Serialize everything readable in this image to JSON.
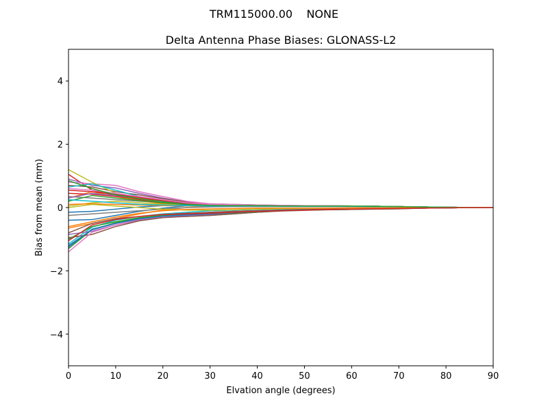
{
  "figure": {
    "suptitle": "TRM115000.00    NONE"
  },
  "chart_data": {
    "type": "line",
    "title": "Delta Antenna Phase Biases: GLONASS-L2",
    "xlabel": "Elvation angle (degrees)",
    "ylabel": "Bias from mean (mm)",
    "xlim": [
      0,
      90
    ],
    "ylim": [
      -5,
      5
    ],
    "x_ticks": [
      0,
      10,
      20,
      30,
      40,
      50,
      60,
      70,
      80,
      90
    ],
    "y_ticks": [
      -4,
      -2,
      0,
      2,
      4
    ],
    "y_tick_labels": [
      "−4",
      "−2",
      "0",
      "2",
      "4"
    ],
    "grid": false,
    "legend": "none",
    "x": [
      0,
      5,
      10,
      15,
      20,
      25,
      30,
      35,
      40,
      45,
      50,
      55,
      60,
      65,
      70,
      75,
      80,
      85,
      90
    ],
    "series": [
      {
        "color": "#1f77b4",
        "values": [
          -0.4,
          -0.38,
          -0.25,
          -0.12,
          -0.02,
          0.05,
          0.08,
          0.08,
          0.07,
          0.06,
          0.05,
          0.05,
          0.04,
          0.04,
          0.03,
          0.02,
          0.01,
          0.0,
          0.0
        ]
      },
      {
        "color": "#ff7f0e",
        "values": [
          -0.65,
          -0.5,
          -0.35,
          -0.2,
          -0.08,
          0.0,
          0.05,
          0.07,
          0.07,
          0.06,
          0.06,
          0.05,
          0.05,
          0.04,
          0.03,
          0.02,
          0.01,
          0.0,
          0.0
        ]
      },
      {
        "color": "#2ca02c",
        "values": [
          -1.3,
          -0.7,
          -0.48,
          -0.35,
          -0.28,
          -0.28,
          -0.25,
          -0.2,
          -0.15,
          -0.1,
          -0.08,
          -0.07,
          -0.06,
          -0.05,
          -0.04,
          -0.02,
          -0.01,
          0.0,
          0.0
        ]
      },
      {
        "color": "#d62728",
        "values": [
          1.05,
          0.55,
          0.38,
          0.25,
          0.15,
          0.08,
          0.05,
          0.05,
          0.05,
          0.05,
          0.05,
          0.05,
          0.05,
          0.04,
          0.03,
          0.02,
          0.01,
          0.0,
          0.0
        ]
      },
      {
        "color": "#9467bd",
        "values": [
          0.9,
          0.7,
          0.62,
          0.45,
          0.3,
          0.18,
          0.1,
          0.08,
          0.07,
          0.06,
          0.06,
          0.05,
          0.05,
          0.04,
          0.03,
          0.02,
          0.01,
          0.0,
          0.0
        ]
      },
      {
        "color": "#8c564b",
        "values": [
          0.7,
          0.65,
          0.5,
          0.4,
          0.28,
          0.18,
          0.12,
          0.1,
          0.08,
          0.07,
          0.06,
          0.06,
          0.05,
          0.04,
          0.03,
          0.02,
          0.01,
          0.0,
          0.0
        ]
      },
      {
        "color": "#e377c2",
        "values": [
          0.8,
          0.75,
          0.7,
          0.5,
          0.35,
          0.2,
          0.12,
          0.1,
          0.08,
          0.07,
          0.06,
          0.06,
          0.05,
          0.04,
          0.03,
          0.02,
          0.01,
          0.0,
          0.0
        ]
      },
      {
        "color": "#7f7f7f",
        "values": [
          0.35,
          0.3,
          0.25,
          0.2,
          0.15,
          0.1,
          0.08,
          0.07,
          0.06,
          0.06,
          0.05,
          0.05,
          0.04,
          0.04,
          0.03,
          0.02,
          0.01,
          0.0,
          0.0
        ]
      },
      {
        "color": "#bcbd22",
        "values": [
          1.2,
          0.8,
          0.45,
          0.3,
          0.2,
          0.12,
          0.08,
          0.07,
          0.06,
          0.06,
          0.05,
          0.05,
          0.05,
          0.04,
          0.03,
          0.02,
          0.01,
          0.0,
          0.0
        ]
      },
      {
        "color": "#17becf",
        "values": [
          -1.15,
          -0.62,
          -0.4,
          -0.28,
          -0.2,
          -0.15,
          -0.1,
          -0.08,
          -0.06,
          -0.05,
          -0.04,
          -0.03,
          -0.02,
          -0.02,
          -0.01,
          -0.01,
          0.0,
          0.0,
          0.0
        ]
      },
      {
        "color": "#1f77b4",
        "values": [
          -1.2,
          -0.7,
          -0.5,
          -0.35,
          -0.25,
          -0.2,
          -0.15,
          -0.12,
          -0.1,
          -0.08,
          -0.06,
          -0.05,
          -0.04,
          -0.03,
          -0.02,
          -0.01,
          -0.01,
          0.0,
          0.0
        ]
      },
      {
        "color": "#ff7f0e",
        "values": [
          0.3,
          0.5,
          0.35,
          0.22,
          0.12,
          0.08,
          0.05,
          0.05,
          0.05,
          0.04,
          0.04,
          0.04,
          0.04,
          0.03,
          0.03,
          0.02,
          0.01,
          0.0,
          0.0
        ]
      },
      {
        "color": "#2ca02c",
        "values": [
          0.2,
          0.38,
          0.3,
          0.22,
          0.15,
          0.1,
          0.08,
          0.07,
          0.06,
          0.06,
          0.05,
          0.05,
          0.05,
          0.04,
          0.03,
          0.02,
          0.01,
          0.0,
          0.0
        ]
      },
      {
        "color": "#d62728",
        "values": [
          0.45,
          0.42,
          0.35,
          0.28,
          0.2,
          0.12,
          0.08,
          0.06,
          0.05,
          0.05,
          0.04,
          0.04,
          0.04,
          0.03,
          0.03,
          0.02,
          0.01,
          0.0,
          0.0
        ]
      },
      {
        "color": "#9467bd",
        "values": [
          -0.85,
          -0.75,
          -0.55,
          -0.4,
          -0.3,
          -0.25,
          -0.22,
          -0.18,
          -0.14,
          -0.1,
          -0.08,
          -0.06,
          -0.05,
          -0.04,
          -0.03,
          -0.02,
          -0.01,
          0.0,
          0.0
        ]
      },
      {
        "color": "#8c564b",
        "values": [
          -0.95,
          -0.85,
          -0.6,
          -0.42,
          -0.32,
          -0.28,
          -0.25,
          -0.2,
          -0.15,
          -0.11,
          -0.09,
          -0.07,
          -0.06,
          -0.05,
          -0.04,
          -0.02,
          -0.01,
          0.0,
          0.0
        ]
      },
      {
        "color": "#e377c2",
        "values": [
          -1.4,
          -0.78,
          -0.55,
          -0.38,
          -0.28,
          -0.22,
          -0.18,
          -0.14,
          -0.11,
          -0.09,
          -0.07,
          -0.05,
          -0.04,
          -0.03,
          -0.02,
          -0.01,
          -0.01,
          0.0,
          0.0
        ]
      },
      {
        "color": "#7f7f7f",
        "values": [
          -0.25,
          -0.2,
          -0.15,
          -0.1,
          -0.05,
          0.0,
          0.02,
          0.03,
          0.03,
          0.03,
          0.03,
          0.03,
          0.03,
          0.02,
          0.02,
          0.01,
          0.01,
          0.0,
          0.0
        ]
      },
      {
        "color": "#bcbd22",
        "values": [
          0.05,
          0.15,
          0.2,
          0.15,
          0.1,
          0.07,
          0.05,
          0.05,
          0.05,
          0.04,
          0.04,
          0.04,
          0.04,
          0.03,
          0.03,
          0.02,
          0.01,
          0.0,
          0.0
        ]
      },
      {
        "color": "#17becf",
        "values": [
          0.65,
          0.75,
          0.55,
          0.35,
          0.2,
          0.12,
          0.08,
          0.07,
          0.06,
          0.06,
          0.05,
          0.05,
          0.05,
          0.04,
          0.03,
          0.02,
          0.01,
          0.0,
          0.0
        ]
      },
      {
        "color": "#1f77b4",
        "values": [
          -0.15,
          -0.12,
          -0.05,
          0.02,
          0.06,
          0.08,
          0.08,
          0.08,
          0.07,
          0.06,
          0.05,
          0.05,
          0.04,
          0.04,
          0.03,
          0.02,
          0.01,
          0.0,
          0.0
        ]
      },
      {
        "color": "#ff7f0e",
        "values": [
          0.1,
          0.12,
          0.1,
          0.08,
          0.06,
          0.05,
          0.05,
          0.05,
          0.05,
          0.05,
          0.04,
          0.04,
          0.04,
          0.03,
          0.03,
          0.02,
          0.01,
          0.0,
          0.0
        ]
      },
      {
        "color": "#2ca02c",
        "values": [
          -1.0,
          -0.6,
          -0.45,
          -0.32,
          -0.25,
          -0.22,
          -0.2,
          -0.17,
          -0.13,
          -0.1,
          -0.08,
          -0.06,
          -0.05,
          -0.04,
          -0.03,
          -0.02,
          -0.01,
          0.0,
          0.0
        ]
      },
      {
        "color": "#d62728",
        "values": [
          0.55,
          0.5,
          0.42,
          0.32,
          0.22,
          0.13,
          0.08,
          0.06,
          0.05,
          0.05,
          0.05,
          0.05,
          0.04,
          0.04,
          0.03,
          0.02,
          0.01,
          0.0,
          0.0
        ]
      },
      {
        "color": "#9467bd",
        "values": [
          0.3,
          0.45,
          0.38,
          0.28,
          0.18,
          0.1,
          0.06,
          0.05,
          0.05,
          0.05,
          0.04,
          0.04,
          0.04,
          0.03,
          0.03,
          0.02,
          0.01,
          0.0,
          0.0
        ]
      },
      {
        "color": "#8c564b",
        "values": [
          -0.8,
          -0.5,
          -0.35,
          -0.28,
          -0.22,
          -0.18,
          -0.15,
          -0.12,
          -0.1,
          -0.08,
          -0.06,
          -0.05,
          -0.04,
          -0.03,
          -0.02,
          -0.02,
          -0.01,
          0.0,
          0.0
        ]
      },
      {
        "color": "#e377c2",
        "values": [
          0.6,
          0.55,
          0.45,
          0.35,
          0.25,
          0.15,
          0.1,
          0.08,
          0.07,
          0.06,
          0.06,
          0.05,
          0.05,
          0.04,
          0.03,
          0.02,
          0.01,
          0.0,
          0.0
        ]
      },
      {
        "color": "#bcbd22",
        "values": [
          0.0,
          0.1,
          0.05,
          0.0,
          -0.05,
          -0.08,
          -0.08,
          -0.07,
          -0.05,
          -0.04,
          -0.03,
          -0.02,
          -0.02,
          -0.01,
          -0.01,
          0.0,
          0.0,
          0.0,
          0.0
        ]
      },
      {
        "color": "#17becf",
        "values": [
          0.25,
          0.2,
          0.15,
          0.1,
          0.08,
          0.06,
          0.05,
          0.05,
          0.05,
          0.04,
          0.04,
          0.04,
          0.04,
          0.03,
          0.03,
          0.02,
          0.01,
          0.0,
          0.0
        ]
      },
      {
        "color": "#1f77b4",
        "values": [
          -1.25,
          -0.68,
          -0.5,
          -0.36,
          -0.27,
          -0.23,
          -0.2,
          -0.16,
          -0.12,
          -0.09,
          -0.07,
          -0.06,
          -0.05,
          -0.04,
          -0.03,
          -0.02,
          -0.01,
          0.0,
          0.0
        ]
      },
      {
        "color": "#ff7f0e",
        "values": [
          -0.6,
          -0.45,
          -0.3,
          -0.18,
          -0.1,
          -0.06,
          -0.04,
          -0.03,
          -0.02,
          -0.02,
          -0.02,
          -0.02,
          -0.01,
          -0.01,
          -0.01,
          0.0,
          0.0,
          0.0,
          0.0
        ]
      },
      {
        "color": "#2ca02c",
        "values": [
          0.85,
          0.6,
          0.4,
          0.28,
          0.18,
          0.1,
          0.07,
          0.06,
          0.06,
          0.05,
          0.05,
          0.05,
          0.05,
          0.04,
          0.03,
          0.02,
          0.01,
          0.0,
          0.0
        ]
      },
      {
        "color": "#d62728",
        "values": [
          -1.05,
          -0.55,
          -0.38,
          -0.28,
          -0.22,
          -0.2,
          -0.18,
          -0.15,
          -0.12,
          -0.1,
          -0.08,
          -0.06,
          -0.05,
          -0.04,
          -0.03,
          -0.02,
          -0.01,
          0.0,
          0.0
        ]
      }
    ]
  }
}
